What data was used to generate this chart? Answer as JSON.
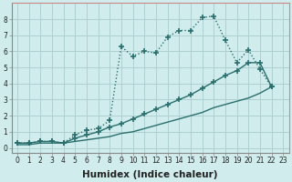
{
  "xlabel": "Humidex (Indice chaleur)",
  "background_color": "#d0ecec",
  "grid_color": "#aed0d0",
  "line_color": "#2a6e6e",
  "series": [
    {
      "x": [
        0,
        1,
        2,
        3,
        4,
        5,
        6,
        7,
        8,
        9,
        10,
        11,
        12,
        13,
        14,
        15,
        16,
        17,
        18,
        19,
        20,
        21,
        22
      ],
      "y": [
        0.3,
        0.3,
        0.4,
        0.4,
        0.3,
        0.8,
        1.1,
        1.2,
        1.7,
        6.3,
        5.7,
        6.0,
        5.9,
        6.9,
        7.3,
        7.3,
        8.1,
        8.2,
        6.7,
        5.3,
        6.1,
        4.9,
        3.8
      ],
      "marker": "+",
      "markersize": 4,
      "linewidth": 1.0,
      "linestyle": ":"
    },
    {
      "x": [
        0,
        1,
        2,
        3,
        4,
        5,
        6,
        7,
        8,
        9,
        10,
        11,
        12,
        13,
        14,
        15,
        16,
        17,
        18,
        19,
        20,
        21,
        22
      ],
      "y": [
        0.3,
        0.3,
        0.4,
        0.4,
        0.3,
        0.6,
        0.8,
        1.0,
        1.3,
        1.5,
        1.8,
        2.1,
        2.4,
        2.7,
        3.0,
        3.3,
        3.7,
        4.1,
        4.5,
        4.8,
        5.3,
        5.3,
        3.8
      ],
      "marker": "+",
      "markersize": 4,
      "linewidth": 1.0,
      "linestyle": "-"
    },
    {
      "x": [
        0,
        1,
        2,
        3,
        4,
        5,
        6,
        7,
        8,
        9,
        10,
        11,
        12,
        13,
        14,
        15,
        16,
        17,
        18,
        19,
        20,
        21,
        22
      ],
      "y": [
        0.2,
        0.2,
        0.3,
        0.3,
        0.3,
        0.4,
        0.5,
        0.6,
        0.7,
        0.9,
        1.0,
        1.2,
        1.4,
        1.6,
        1.8,
        2.0,
        2.2,
        2.5,
        2.7,
        2.9,
        3.1,
        3.4,
        3.8
      ],
      "marker": null,
      "markersize": 0,
      "linewidth": 1.0,
      "linestyle": "-"
    }
  ],
  "xlim": [
    -0.5,
    23.5
  ],
  "ylim": [
    -0.3,
    9.0
  ],
  "yticks": [
    0,
    1,
    2,
    3,
    4,
    5,
    6,
    7,
    8
  ],
  "xticks": [
    0,
    1,
    2,
    3,
    4,
    5,
    6,
    7,
    8,
    9,
    10,
    11,
    12,
    13,
    14,
    15,
    16,
    17,
    18,
    19,
    20,
    21,
    22,
    23
  ],
  "xtick_labels": [
    "0",
    "1",
    "2",
    "3",
    "4",
    "5",
    "6",
    "7",
    "8",
    "9",
    "10",
    "11",
    "12",
    "13",
    "14",
    "15",
    "16",
    "17",
    "18",
    "19",
    "20",
    "21",
    "22",
    "23"
  ],
  "tick_fontsize": 5.5,
  "ylabel_fontsize": 6.5,
  "xlabel_fontsize": 7.5
}
